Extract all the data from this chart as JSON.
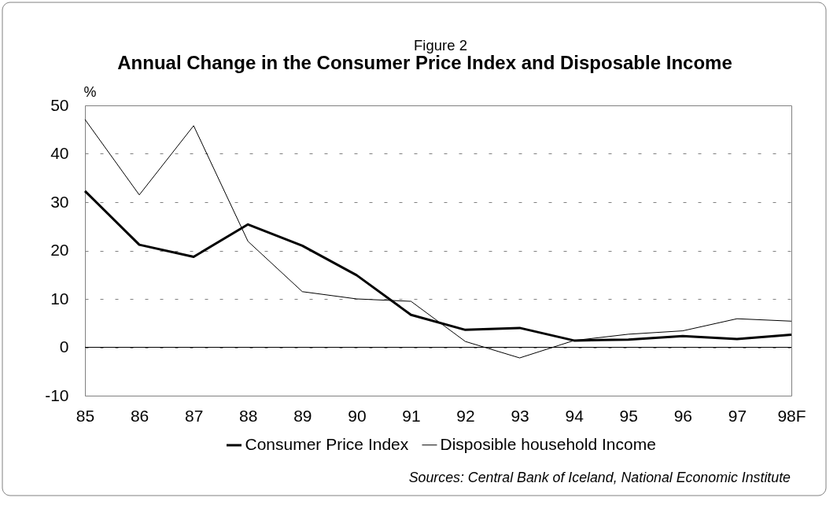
{
  "chart_data": {
    "type": "line",
    "title": "Annual Change in the Consumer Price Index and Disposable Income",
    "subtitle": "Figure 2",
    "ylabel": "%",
    "categories": [
      "85",
      "86",
      "87",
      "88",
      "89",
      "90",
      "91",
      "92",
      "93",
      "94",
      "95",
      "96",
      "97",
      "98F"
    ],
    "series": [
      {
        "name": "Consumer Price Index",
        "color": "#000000",
        "values": [
          32.3,
          21.2,
          18.7,
          25.4,
          21.0,
          14.9,
          6.7,
          3.6,
          4.0,
          1.4,
          1.6,
          2.3,
          1.7,
          2.6
        ]
      },
      {
        "name": "Disposible household Income",
        "color": "#000000",
        "values": [
          47.1,
          31.5,
          45.8,
          21.9,
          11.5,
          10.0,
          9.5,
          1.2,
          -2.2,
          1.4,
          2.7,
          3.4,
          5.9,
          5.4
        ]
      }
    ],
    "ylim": [
      -10,
      50
    ],
    "yticks": [
      -10,
      0,
      10,
      20,
      30,
      40,
      50
    ],
    "grid": "y",
    "legend": "bottom",
    "ref_lines": [
      {
        "axis": "y",
        "value": 0,
        "color": "#000000"
      }
    ],
    "annotations": [
      "Sources: Central Bank of Iceland, National Economic Institute"
    ]
  }
}
